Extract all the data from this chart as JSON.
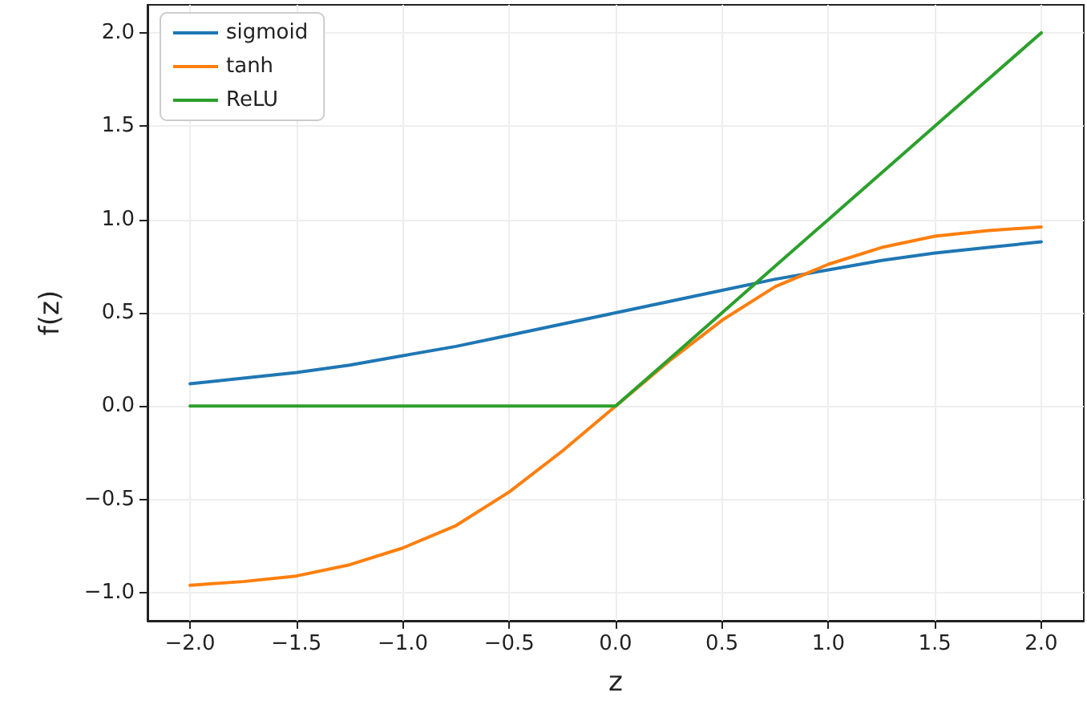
{
  "chart_data": {
    "type": "line",
    "xlabel": "z",
    "ylabel": "f(z)",
    "x": [
      -2,
      -1.75,
      -1.5,
      -1.25,
      -1,
      -0.75,
      -0.5,
      -0.25,
      0,
      0.25,
      0.5,
      0.75,
      1,
      1.25,
      1.5,
      1.75,
      2
    ],
    "series": [
      {
        "name": "sigmoid",
        "color": "#1f77b4",
        "values": [
          0.12,
          0.15,
          0.18,
          0.22,
          0.27,
          0.32,
          0.38,
          0.44,
          0.5,
          0.56,
          0.62,
          0.68,
          0.73,
          0.78,
          0.82,
          0.85,
          0.88
        ]
      },
      {
        "name": "tanh",
        "color": "#ff7f0e",
        "values": [
          -0.96,
          -0.94,
          -0.91,
          -0.85,
          -0.76,
          -0.64,
          -0.46,
          -0.24,
          0,
          0.24,
          0.46,
          0.64,
          0.76,
          0.85,
          0.91,
          0.94,
          0.96
        ]
      },
      {
        "name": "ReLU",
        "color": "#2ca02c",
        "values": [
          0,
          0,
          0,
          0,
          0,
          0,
          0,
          0,
          0,
          0.25,
          0.5,
          0.75,
          1,
          1.25,
          1.5,
          1.75,
          2
        ]
      }
    ],
    "xlim": [
      -2.2,
      2.2
    ],
    "ylim": [
      -1.15,
      2.15
    ],
    "xticks": [
      {
        "value": -2,
        "label": "−2.0"
      },
      {
        "value": -1.5,
        "label": "−1.5"
      },
      {
        "value": -1,
        "label": "−1.0"
      },
      {
        "value": -0.5,
        "label": "−0.5"
      },
      {
        "value": 0,
        "label": "0.0"
      },
      {
        "value": 0.5,
        "label": "0.5"
      },
      {
        "value": 1,
        "label": "1.0"
      },
      {
        "value": 1.5,
        "label": "1.5"
      },
      {
        "value": 2,
        "label": "2.0"
      }
    ],
    "yticks": [
      {
        "value": -1,
        "label": "−1.0"
      },
      {
        "value": -0.5,
        "label": "−0.5"
      },
      {
        "value": 0,
        "label": "0.0"
      },
      {
        "value": 0.5,
        "label": "0.5"
      },
      {
        "value": 1,
        "label": "1.0"
      },
      {
        "value": 1.5,
        "label": "1.5"
      },
      {
        "value": 2,
        "label": "2.0"
      }
    ],
    "grid": true,
    "legend": "top left",
    "marker": "none",
    "line_style": "solid"
  }
}
